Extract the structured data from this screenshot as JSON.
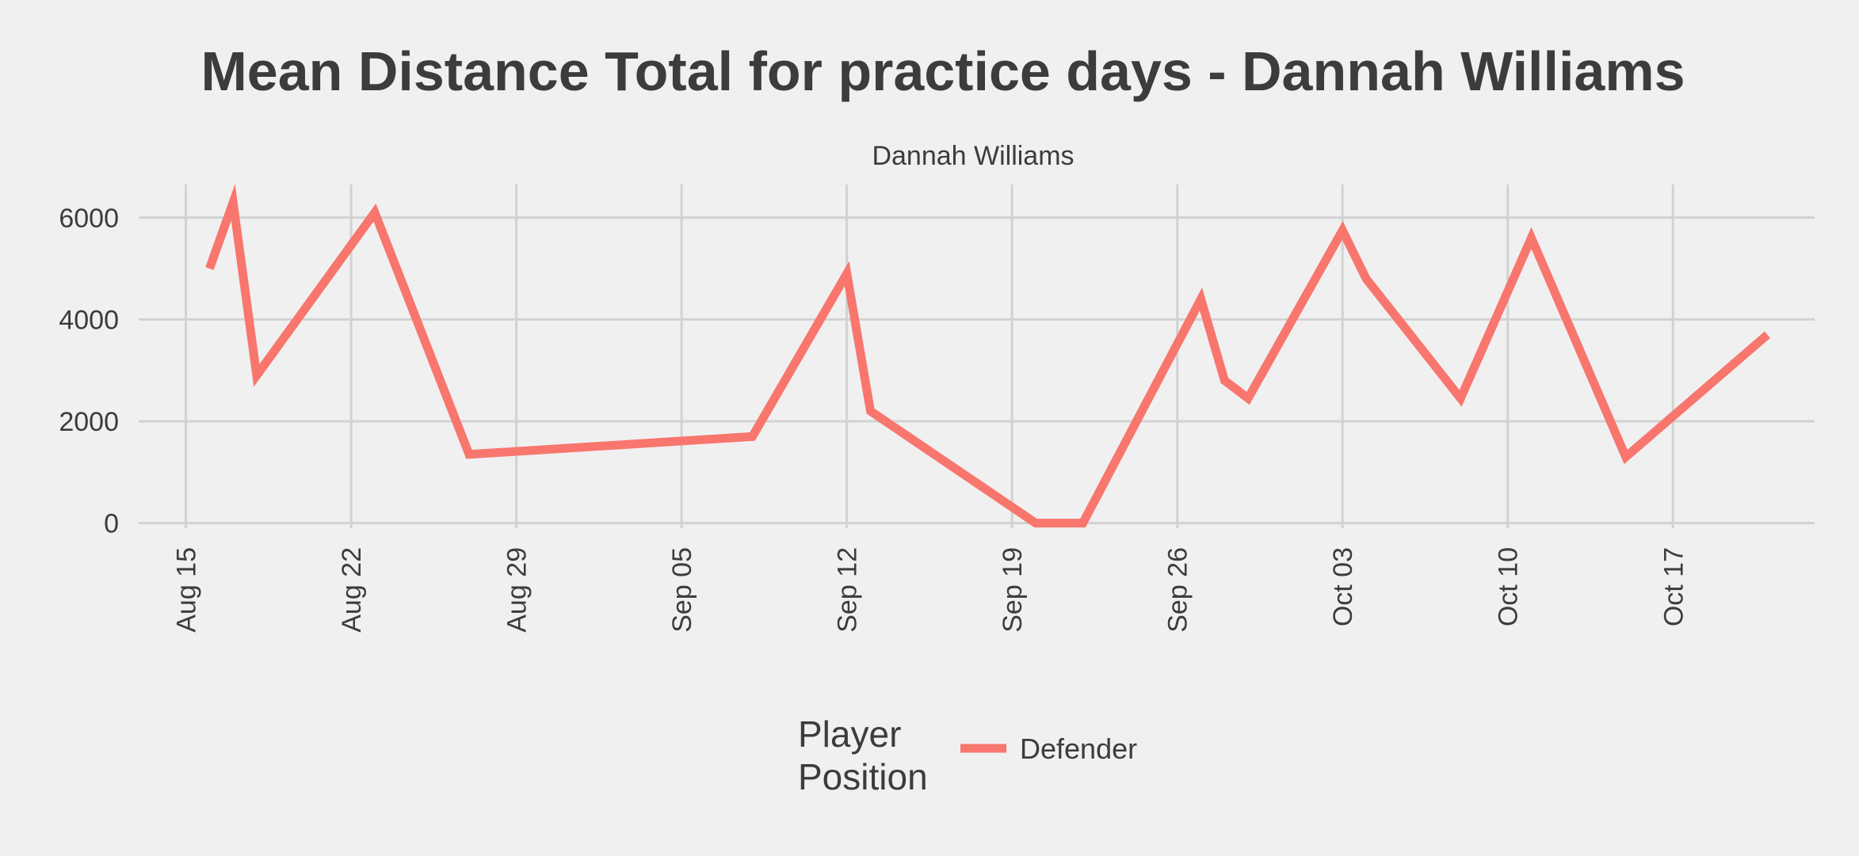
{
  "chart_data": {
    "type": "line",
    "title": "Mean Distance Total for practice days -  Dannah Williams",
    "subtitle": "Dannah Williams",
    "xlabel": "",
    "ylabel": "",
    "x_tick_labels": [
      "Aug 15",
      "Aug 22",
      "Aug 29",
      "Sep 05",
      "Sep 12",
      "Sep 19",
      "Sep 26",
      "Oct 03",
      "Oct 10",
      "Oct 17"
    ],
    "x_tick_dates": [
      "2023-08-15",
      "2023-08-22",
      "2023-08-29",
      "2023-09-05",
      "2023-09-12",
      "2023-09-19",
      "2023-09-26",
      "2023-10-03",
      "2023-10-10",
      "2023-10-17"
    ],
    "y_ticks": [
      0,
      2000,
      4000,
      6000
    ],
    "y_tick_labels": [
      "0",
      "2000",
      "4000",
      "6000"
    ],
    "xlim": [
      "2023-08-13",
      "2023-10-23"
    ],
    "ylim": [
      -100,
      6650
    ],
    "grid": true,
    "legend": {
      "title": "Player\nPosition",
      "title_lines": [
        "Player",
        "Position"
      ],
      "position": "bottom"
    },
    "series": [
      {
        "name": "Defender",
        "color": "#f8766d",
        "x": [
          "2023-08-16",
          "2023-08-17",
          "2023-08-18",
          "2023-08-23",
          "2023-08-27",
          "2023-09-08",
          "2023-09-12",
          "2023-09-13",
          "2023-09-20",
          "2023-09-22",
          "2023-09-27",
          "2023-09-28",
          "2023-09-29",
          "2023-10-03",
          "2023-10-04",
          "2023-10-08",
          "2023-10-11",
          "2023-10-15",
          "2023-10-21"
        ],
        "values": [
          5000,
          6300,
          2900,
          6100,
          1350,
          1700,
          4900,
          2200,
          0,
          0,
          4400,
          2800,
          2450,
          5750,
          4800,
          2450,
          5600,
          1300,
          3700
        ]
      }
    ]
  }
}
